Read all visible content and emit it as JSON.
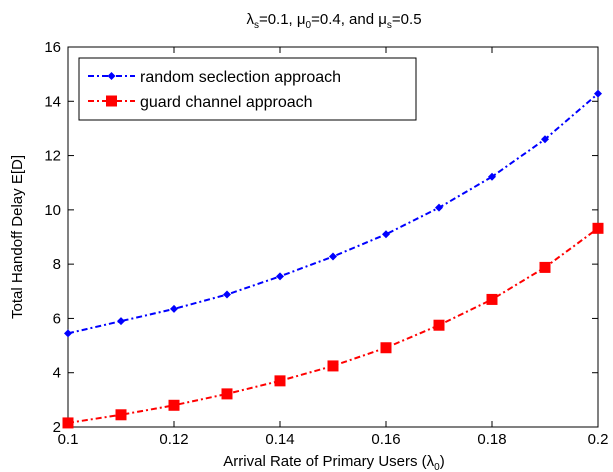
{
  "chart_data": {
    "type": "line",
    "title_parts": {
      "lambda": "λ",
      "lambda_sub": "s",
      "eq1": "=0.1, ",
      "mu0": "μ",
      "mu0_sub": "0",
      "eq2": "=0.4, and ",
      "mus": "μ",
      "mus_sub": "s",
      "eq3": "=0.5"
    },
    "xlabel_parts": {
      "text": "Arrival Rate of Primary Users (λ",
      "sub": "0",
      "close": ")"
    },
    "ylabel": "Total Handoff Delay E[D]",
    "xlim": [
      0.1,
      0.2
    ],
    "ylim": [
      2,
      16
    ],
    "x_ticks": [
      "0.1",
      "0.12",
      "0.14",
      "0.16",
      "0.18",
      "0.2"
    ],
    "y_ticks": [
      "2",
      "4",
      "6",
      "8",
      "10",
      "12",
      "14",
      "16"
    ],
    "grid": false,
    "legend_position": "top-left",
    "x": [
      0.1,
      0.11,
      0.12,
      0.13,
      0.14,
      0.15,
      0.16,
      0.17,
      0.18,
      0.19,
      0.2
    ],
    "series": [
      {
        "name": "random seclection approach",
        "color": "#0000ff",
        "marker": "diamond",
        "values": [
          5.45,
          5.9,
          6.35,
          6.88,
          7.55,
          8.28,
          9.1,
          10.08,
          11.22,
          12.6,
          14.28
        ]
      },
      {
        "name": "guard channel approach",
        "color": "#ff0000",
        "marker": "square",
        "values": [
          2.15,
          2.45,
          2.8,
          3.22,
          3.7,
          4.25,
          4.92,
          5.75,
          6.7,
          7.88,
          9.32
        ]
      }
    ]
  }
}
